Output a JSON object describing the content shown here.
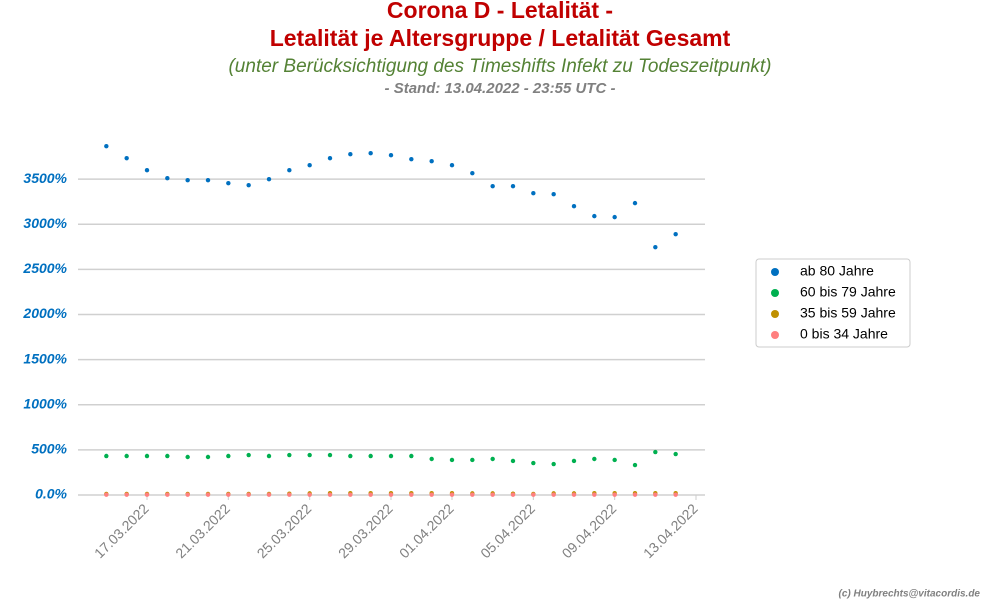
{
  "chart_data": {
    "type": "scatter",
    "title": "Corona D - Letalität -",
    "title2": "Letalität je Altersgruppe / Letalität Gesamt",
    "subtitle": "(unter Berücksichtigung des Timeshifts Infekt zu Todeszeitpunkt)",
    "stand": "- Stand: 13.04.2022 - 23:55 UTC -",
    "footer": "(c) Huybrechts@vitacordis.de",
    "x": [
      "2022-03-15",
      "2022-03-16",
      "2022-03-17",
      "2022-03-18",
      "2022-03-19",
      "2022-03-20",
      "2022-03-21",
      "2022-03-22",
      "2022-03-23",
      "2022-03-24",
      "2022-03-25",
      "2022-03-26",
      "2022-03-27",
      "2022-03-28",
      "2022-03-29",
      "2022-03-30",
      "2022-03-31",
      "2022-04-01",
      "2022-04-02",
      "2022-04-03",
      "2022-04-04",
      "2022-04-05",
      "2022-04-06",
      "2022-04-07",
      "2022-04-08",
      "2022-04-09",
      "2022-04-10",
      "2022-04-11",
      "2022-04-12"
    ],
    "xlim": [
      "2022-03-14",
      "2022-04-13"
    ],
    "xticks": [
      {
        "value": "2022-03-17",
        "label": "17.03.2022"
      },
      {
        "value": "2022-03-21",
        "label": "21.03.2022"
      },
      {
        "value": "2022-03-25",
        "label": "25.03.2022"
      },
      {
        "value": "2022-03-29",
        "label": "29.03.2022"
      },
      {
        "value": "2022-04-01",
        "label": "01.04.2022"
      },
      {
        "value": "2022-04-05",
        "label": "05.04.2022"
      },
      {
        "value": "2022-04-09",
        "label": "09.04.2022"
      },
      {
        "value": "2022-04-13",
        "label": "13.04.2022"
      }
    ],
    "ylim": [
      0,
      4000
    ],
    "yticks": [
      {
        "value": 0,
        "label": "0.0%"
      },
      {
        "value": 500,
        "label": "500%"
      },
      {
        "value": 1000,
        "label": "1000%"
      },
      {
        "value": 1500,
        "label": "1500%"
      },
      {
        "value": 2000,
        "label": "2000%"
      },
      {
        "value": 2500,
        "label": "2500%"
      },
      {
        "value": 3000,
        "label": "3000%"
      },
      {
        "value": 3500,
        "label": "3500%"
      }
    ],
    "grid": true,
    "series": [
      {
        "name": "ab 80 Jahre",
        "color": "#0070c0",
        "values": [
          3865,
          3732,
          3599,
          3510,
          3488,
          3488,
          3455,
          3433,
          3499,
          3599,
          3654,
          3732,
          3776,
          3787,
          3765,
          3721,
          3699,
          3654,
          3566,
          3422,
          3422,
          3344,
          3333,
          3200,
          3090,
          3079,
          3234,
          2746,
          2890
        ]
      },
      {
        "name": "60 bis 79 Jahre",
        "color": "#00b050",
        "values": [
          432,
          432,
          432,
          432,
          421,
          421,
          432,
          443,
          432,
          443,
          443,
          443,
          432,
          432,
          432,
          432,
          399,
          388,
          388,
          399,
          377,
          354,
          343,
          377,
          399,
          388,
          332,
          476,
          454
        ]
      },
      {
        "name": "35 bis 59 Jahre",
        "color": "#bf9000",
        "values": [
          12,
          12,
          12,
          12,
          12,
          12,
          12,
          12,
          12,
          14,
          18,
          20,
          20,
          20,
          20,
          20,
          20,
          20,
          18,
          18,
          15,
          12,
          18,
          18,
          20,
          20,
          20,
          20,
          20
        ]
      },
      {
        "name": "0 bis 34 Jahre",
        "color": "#ff7f7f",
        "values": [
          3,
          3,
          3,
          3,
          3,
          3,
          3,
          3,
          3,
          3,
          4,
          4,
          4,
          4,
          4,
          4,
          4,
          4,
          4,
          4,
          3,
          3,
          3,
          3,
          4,
          4,
          4,
          4,
          4
        ]
      }
    ]
  }
}
